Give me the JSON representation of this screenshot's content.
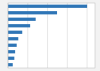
{
  "chart_data": {
    "type": "bar",
    "orientation": "horizontal",
    "categories": [
      null,
      null,
      null,
      null,
      null,
      null,
      null,
      null,
      null,
      null
    ],
    "values": [
      100,
      62,
      35,
      28,
      18,
      13,
      11,
      9,
      8,
      6
    ],
    "color": "#2e75b6",
    "xlim": [
      0,
      110
    ],
    "xticks": [
      0,
      25,
      50,
      75,
      100
    ],
    "grid": true,
    "tick_labels": false
  }
}
